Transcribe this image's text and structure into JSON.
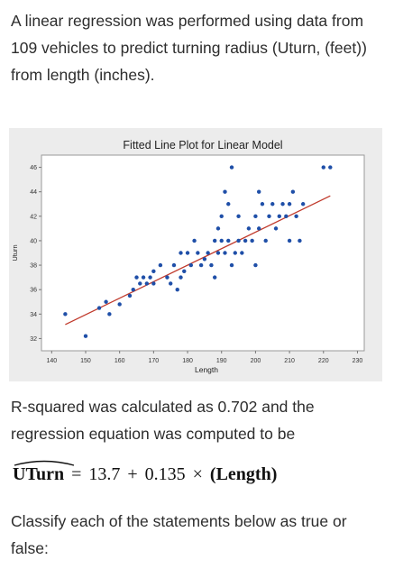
{
  "intro": "A linear regression was performed using data from 109 vehicles to predict turning radius (Uturn, (feet)) from length (inches).",
  "plot": {
    "title": "Fitted Line Plot for Linear Model",
    "xlabel": "Length",
    "ylabel": "Uturn",
    "x_ticks": [
      "140",
      "150",
      "160",
      "170",
      "180",
      "190",
      "200",
      "210",
      "220",
      "230"
    ],
    "y_ticks": [
      "32",
      "34",
      "36",
      "38",
      "40",
      "42",
      "44",
      "46"
    ],
    "colors": {
      "points": "#1f4fa8",
      "fit_line": "#c0392b",
      "background": "#ececec"
    }
  },
  "chart_data": {
    "type": "scatter",
    "title": "Fitted Line Plot for Linear Model",
    "xlabel": "Length",
    "ylabel": "Uturn",
    "xlim": [
      137,
      232
    ],
    "ylim": [
      31,
      47
    ],
    "grid": false,
    "fit_line": {
      "intercept": 13.7,
      "slope": 0.135
    },
    "points": [
      [
        144,
        34
      ],
      [
        150,
        32.2
      ],
      [
        154,
        34.5
      ],
      [
        156,
        35
      ],
      [
        157,
        34
      ],
      [
        163,
        35.5
      ],
      [
        164,
        36
      ],
      [
        165,
        37
      ],
      [
        166,
        36.5
      ],
      [
        167,
        37
      ],
      [
        168,
        36.5
      ],
      [
        169,
        37
      ],
      [
        170,
        36.5
      ],
      [
        170,
        37.5
      ],
      [
        172,
        38
      ],
      [
        174,
        37
      ],
      [
        175,
        36.5
      ],
      [
        176,
        38
      ],
      [
        178,
        37
      ],
      [
        178,
        39
      ],
      [
        179,
        37.5
      ],
      [
        180,
        39
      ],
      [
        181,
        38
      ],
      [
        182,
        40
      ],
      [
        183,
        39
      ],
      [
        184,
        38
      ],
      [
        185,
        38.5
      ],
      [
        186,
        39
      ],
      [
        187,
        38
      ],
      [
        188,
        40
      ],
      [
        189,
        39
      ],
      [
        189,
        41
      ],
      [
        190,
        40
      ],
      [
        190,
        42
      ],
      [
        191,
        39
      ],
      [
        192,
        40
      ],
      [
        192,
        43
      ],
      [
        193,
        38
      ],
      [
        194,
        39
      ],
      [
        195,
        40
      ],
      [
        195,
        42
      ],
      [
        196,
        39
      ],
      [
        197,
        40
      ],
      [
        198,
        41
      ],
      [
        199,
        40
      ],
      [
        200,
        38
      ],
      [
        200,
        42
      ],
      [
        201,
        41
      ],
      [
        202,
        43
      ],
      [
        203,
        40
      ],
      [
        204,
        42
      ],
      [
        205,
        43
      ],
      [
        206,
        41
      ],
      [
        207,
        42
      ],
      [
        208,
        43
      ],
      [
        209,
        42
      ],
      [
        210,
        40
      ],
      [
        210,
        43
      ],
      [
        211,
        44
      ],
      [
        212,
        42
      ],
      [
        213,
        40
      ],
      [
        214,
        43
      ],
      [
        220,
        46
      ],
      [
        222,
        46
      ],
      [
        193,
        46
      ],
      [
        191,
        44
      ],
      [
        188,
        37
      ],
      [
        177,
        36
      ],
      [
        160,
        34.8
      ],
      [
        201,
        44
      ]
    ]
  },
  "rsq_text": "R-squared was calculated as 0.702 and the regression equation was computed to be",
  "equation": {
    "lhs": "UTurn",
    "equals": "=",
    "intercept": "13.7",
    "plus": "+",
    "slope": "0.135",
    "times": "×",
    "predictor": "(Length)"
  },
  "classify_text": "Classify each of the statements below as true or false:"
}
